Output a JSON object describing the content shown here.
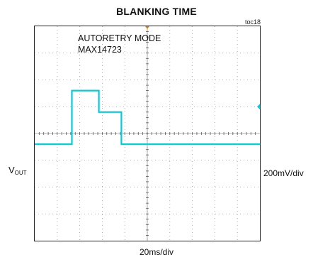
{
  "chart_data": {
    "type": "line",
    "title": "BLANKING TIME",
    "figure_id": "toc18",
    "ylabel_main": "V",
    "ylabel_sub": "OUT",
    "y_scale": "200mV/div",
    "x_scale": "20ms/div",
    "annotations": [
      "AUTORETRY MODE",
      "MAX14723"
    ],
    "grid": true,
    "xlim": [
      0,
      200
    ],
    "ylim": [
      -1000,
      1000
    ],
    "series": [
      {
        "color": "#13c6d2",
        "x": [
          0,
          33,
          33,
          57,
          57,
          77,
          77,
          200
        ],
        "y": [
          -100,
          -100,
          400,
          400,
          200,
          200,
          -100,
          -100
        ]
      }
    ]
  }
}
